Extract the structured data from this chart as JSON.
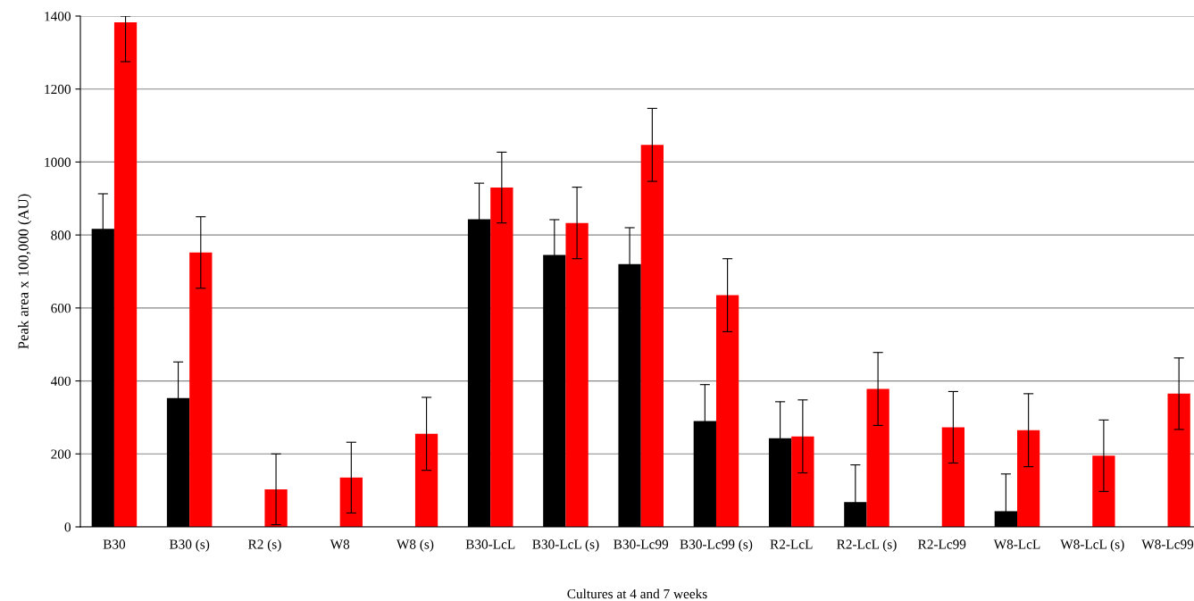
{
  "chart_data": {
    "type": "bar",
    "xlabel": "Cultures at 4 and 7 weeks",
    "ylabel": "Peak area x 100,000 (AU)",
    "categories": [
      "B30",
      "B30 (s)",
      "R2 (s)",
      "W8",
      "W8 (s)",
      "B30-LcL",
      "B30-LcL (s)",
      "B30-Lc99",
      "B30-Lc99 (s)",
      "R2-LcL",
      "R2-LcL (s)",
      "R2-Lc99",
      "W8-LcL",
      "W8-LcL (s)",
      "W8-Lc99"
    ],
    "series": [
      {
        "color": "#000000",
        "values": [
          817,
          353,
          null,
          null,
          null,
          843,
          745,
          720,
          290,
          243,
          68,
          null,
          43,
          null,
          null
        ],
        "errors": [
          96,
          99,
          null,
          null,
          null,
          99,
          97,
          100,
          100,
          100,
          102,
          null,
          102,
          null,
          null
        ]
      },
      {
        "color": "#ff0000",
        "values": [
          1383,
          752,
          103,
          135,
          255,
          930,
          833,
          1047,
          635,
          248,
          378,
          273,
          265,
          195,
          365
        ],
        "errors": [
          [
            1275,
            1400
          ],
          98,
          97,
          97,
          100,
          97,
          98,
          100,
          100,
          100,
          100,
          98,
          100,
          98,
          98
        ]
      }
    ],
    "ylim": [
      0,
      1400
    ],
    "yticks": [
      0,
      200,
      400,
      600,
      800,
      1000,
      1200,
      1400
    ],
    "grid": "y"
  }
}
